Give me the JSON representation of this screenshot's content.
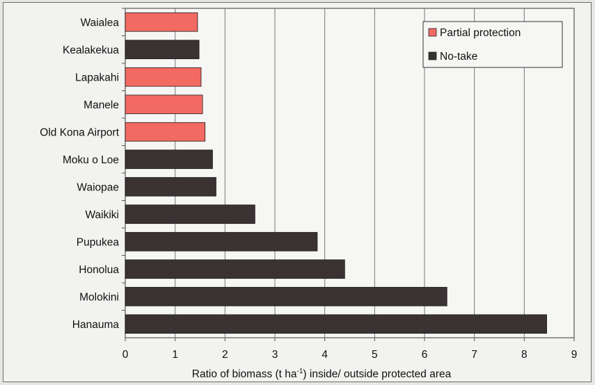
{
  "chart_data": {
    "type": "bar",
    "orientation": "horizontal",
    "categories": [
      "Waialea",
      "Kealakekua",
      "Lapakahi",
      "Manele",
      "Old Kona Airport",
      "Moku o Loe",
      "Waiopae",
      "Waikiki",
      "Pupukea",
      "Honolua",
      "Molokini",
      "Hanauma"
    ],
    "values": [
      1.45,
      1.48,
      1.52,
      1.55,
      1.6,
      1.75,
      1.82,
      2.6,
      3.85,
      4.4,
      6.45,
      8.45
    ],
    "protection": [
      "Partial protection",
      "No-take",
      "Partial protection",
      "Partial protection",
      "Partial protection",
      "No-take",
      "No-take",
      "No-take",
      "No-take",
      "No-take",
      "No-take",
      "No-take"
    ],
    "xlabel_prefix": "Ratio of biomass (t ha",
    "xlabel_sup": "-1",
    "xlabel_suffix": ") inside/ outside protected area",
    "xlim": [
      0,
      9
    ],
    "xticks": [
      "0",
      "1",
      "2",
      "3",
      "4",
      "5",
      "6",
      "7",
      "8",
      "9"
    ],
    "grid": "vertical",
    "legend": {
      "placement": "top-right",
      "entries": [
        {
          "label": "Partial protection",
          "color": "#f26a62"
        },
        {
          "label": "No-take",
          "color": "#3b3234"
        }
      ]
    },
    "colors": {
      "Partial protection": "#f26a62",
      "No-take": "#3b3234"
    }
  }
}
